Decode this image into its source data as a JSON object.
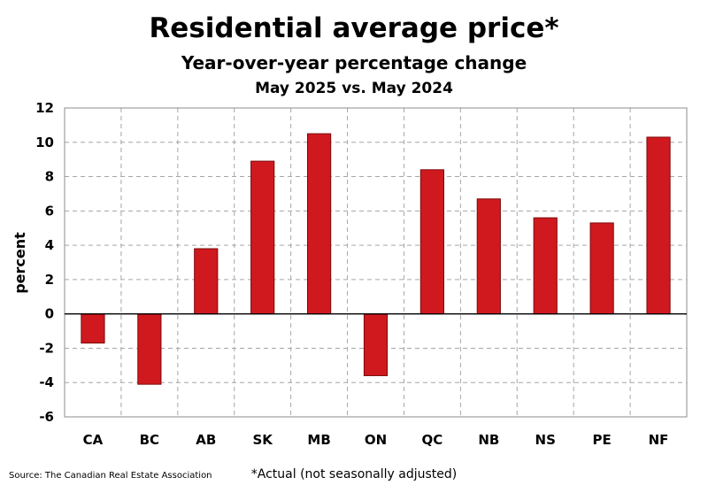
{
  "chart_data": {
    "type": "bar",
    "title": "Residential average price*",
    "subtitle": "Year-over-year percentage change",
    "subtitle2": "May 2025 vs. May 2024",
    "xlabel": "",
    "ylabel": "percent",
    "categories": [
      "CA",
      "BC",
      "AB",
      "SK",
      "MB",
      "ON",
      "QC",
      "NB",
      "NS",
      "PE",
      "NF"
    ],
    "values": [
      -1.7,
      -4.1,
      3.8,
      8.9,
      10.5,
      -3.6,
      8.4,
      6.7,
      5.6,
      5.3,
      10.3
    ],
    "ylim": [
      -6,
      12
    ],
    "yticks": [
      -6,
      -4,
      -2,
      0,
      2,
      4,
      6,
      8,
      10,
      12
    ],
    "grid": true,
    "legend": "none",
    "bar_color": "#d0191e",
    "bar_border_color": "#7a0a0a",
    "grid_color": "#a6a6a6",
    "source": "Source: The Canadian Real Estate Association",
    "footnote": "*Actual (not seasonally adjusted)"
  }
}
